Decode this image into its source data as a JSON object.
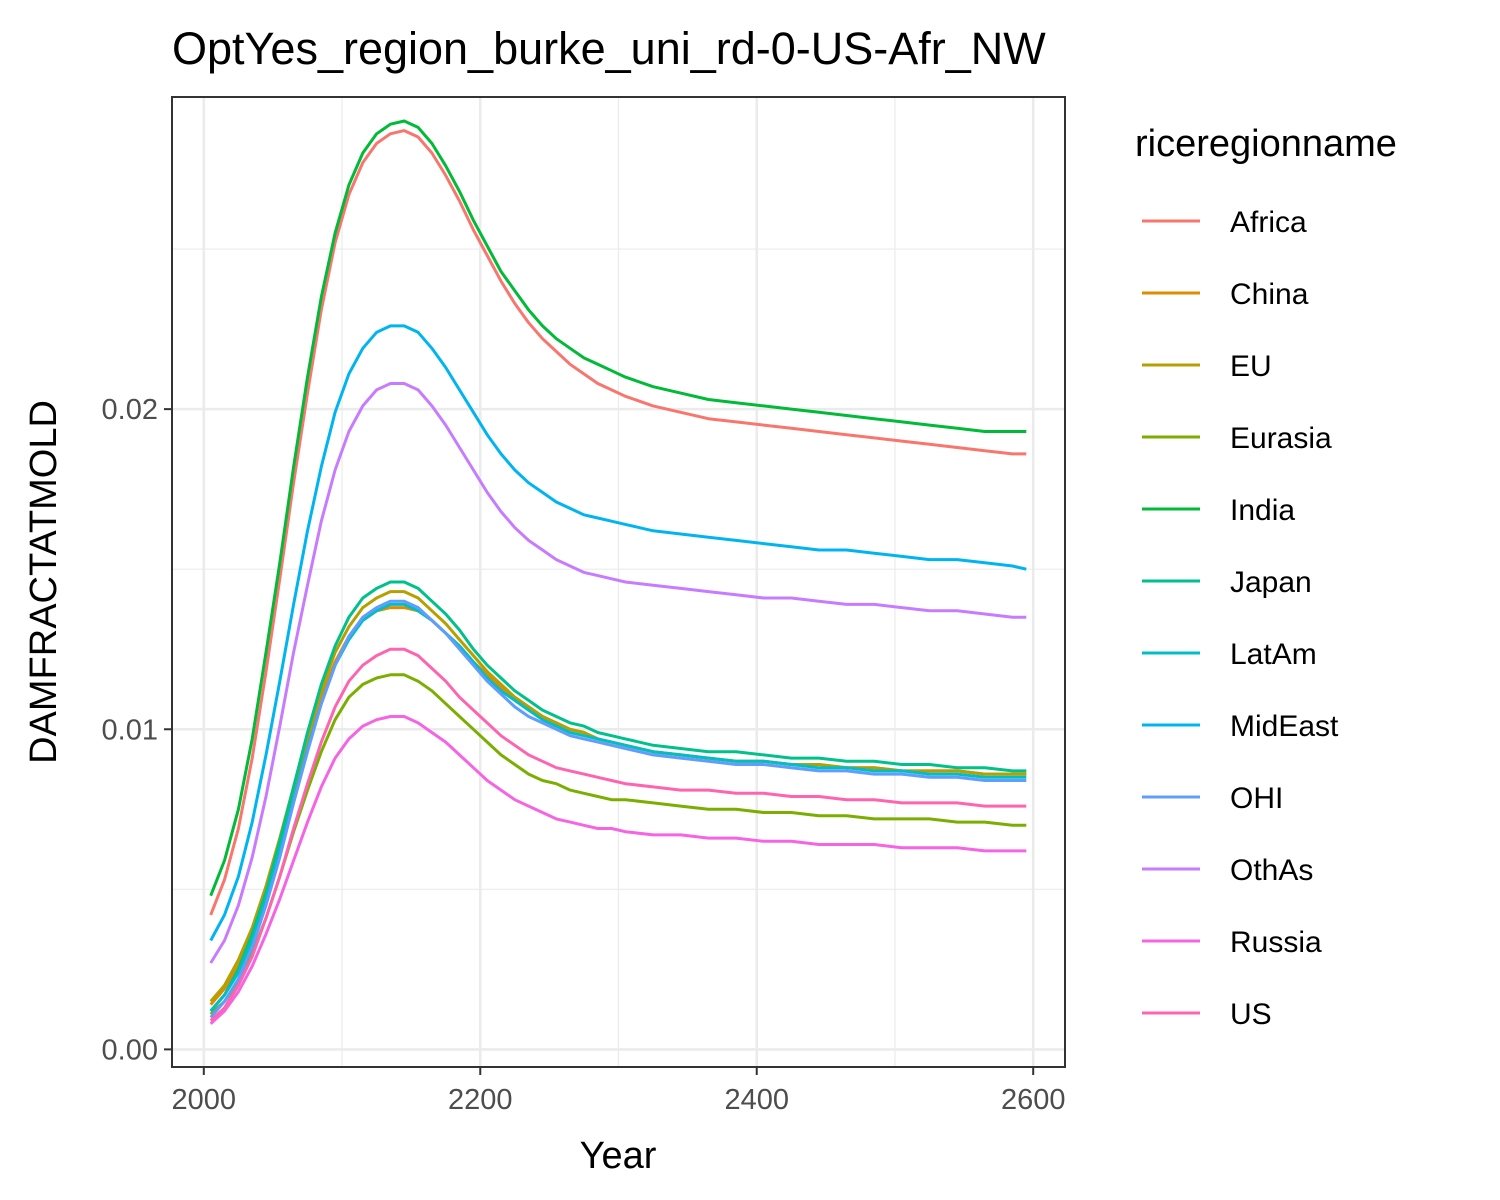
{
  "chart_data": {
    "type": "line",
    "title": "OptYes_region_burke_uni_rd-0-US-Afr_NW",
    "xlabel": "Year",
    "ylabel": "DAMFRACTATMOLD",
    "xlim": [
      1977,
      2623
    ],
    "ylim": [
      -0.00055,
      0.02975
    ],
    "x_ticks": [
      2000,
      2200,
      2400,
      2600
    ],
    "x_tick_labels": [
      "2000",
      "2200",
      "2400",
      "2600"
    ],
    "y_ticks": [
      0.0,
      0.01,
      0.02
    ],
    "y_tick_labels": [
      "0.00",
      "0.01",
      "0.02"
    ],
    "x_minor": [
      2100,
      2300,
      2500
    ],
    "y_minor": [
      0.005,
      0.015,
      0.025
    ],
    "grid": true,
    "legend": {
      "title": "riceregionname",
      "position": "right"
    },
    "x": [
      2005,
      2015,
      2025,
      2035,
      2045,
      2055,
      2065,
      2075,
      2085,
      2095,
      2105,
      2115,
      2125,
      2135,
      2145,
      2155,
      2165,
      2175,
      2185,
      2195,
      2205,
      2215,
      2225,
      2235,
      2245,
      2255,
      2265,
      2275,
      2285,
      2295,
      2305,
      2325,
      2345,
      2365,
      2385,
      2405,
      2425,
      2445,
      2465,
      2485,
      2505,
      2525,
      2545,
      2565,
      2585,
      2595
    ],
    "series": [
      {
        "name": "Africa",
        "color": "#F8766D",
        "values": [
          0.0042,
          0.0053,
          0.0069,
          0.0091,
          0.0118,
          0.0147,
          0.0177,
          0.0205,
          0.0231,
          0.0252,
          0.0267,
          0.0277,
          0.0283,
          0.0286,
          0.0287,
          0.0285,
          0.028,
          0.0273,
          0.0265,
          0.0256,
          0.0248,
          0.024,
          0.0233,
          0.0227,
          0.0222,
          0.0218,
          0.0214,
          0.0211,
          0.0208,
          0.0206,
          0.0204,
          0.0201,
          0.0199,
          0.0197,
          0.0196,
          0.0195,
          0.0194,
          0.0193,
          0.0192,
          0.0191,
          0.019,
          0.0189,
          0.0188,
          0.0187,
          0.0186,
          0.0186
        ]
      },
      {
        "name": "China",
        "color": "#DE8C00",
        "values": [
          0.0014,
          0.0019,
          0.0026,
          0.0036,
          0.0049,
          0.0064,
          0.008,
          0.0096,
          0.011,
          0.0121,
          0.0129,
          0.0134,
          0.0137,
          0.0138,
          0.0138,
          0.0137,
          0.0134,
          0.013,
          0.0126,
          0.0121,
          0.0117,
          0.0113,
          0.011,
          0.0107,
          0.0104,
          0.0102,
          0.01,
          0.0099,
          0.0097,
          0.0096,
          0.0095,
          0.0093,
          0.0092,
          0.0091,
          0.009,
          0.009,
          0.0089,
          0.0089,
          0.0088,
          0.0088,
          0.0087,
          0.0087,
          0.0087,
          0.0086,
          0.0086,
          0.0086
        ]
      },
      {
        "name": "EU",
        "color": "#B79F00",
        "values": [
          0.0015,
          0.002,
          0.0028,
          0.0038,
          0.0051,
          0.0066,
          0.0082,
          0.0098,
          0.0112,
          0.0124,
          0.0132,
          0.0138,
          0.0141,
          0.0143,
          0.0143,
          0.0141,
          0.0137,
          0.0133,
          0.0128,
          0.0123,
          0.0118,
          0.0114,
          0.011,
          0.0107,
          0.0104,
          0.0102,
          0.01,
          0.0099,
          0.0097,
          0.0096,
          0.0095,
          0.0093,
          0.0092,
          0.0091,
          0.009,
          0.009,
          0.0089,
          0.0089,
          0.0088,
          0.0088,
          0.0087,
          0.0087,
          0.0087,
          0.0086,
          0.0086,
          0.0086
        ]
      },
      {
        "name": "Eurasia",
        "color": "#7CAE00",
        "values": [
          0.0011,
          0.0015,
          0.0021,
          0.003,
          0.0041,
          0.0054,
          0.0068,
          0.0081,
          0.0093,
          0.0103,
          0.011,
          0.0114,
          0.0116,
          0.0117,
          0.0117,
          0.0115,
          0.0112,
          0.0108,
          0.0104,
          0.01,
          0.0096,
          0.0092,
          0.0089,
          0.0086,
          0.0084,
          0.0083,
          0.0081,
          0.008,
          0.0079,
          0.0078,
          0.0078,
          0.0077,
          0.0076,
          0.0075,
          0.0075,
          0.0074,
          0.0074,
          0.0073,
          0.0073,
          0.0072,
          0.0072,
          0.0072,
          0.0071,
          0.0071,
          0.007,
          0.007
        ]
      },
      {
        "name": "India",
        "color": "#00BA38",
        "values": [
          0.0048,
          0.0059,
          0.0075,
          0.0097,
          0.0124,
          0.0152,
          0.0182,
          0.021,
          0.0235,
          0.0255,
          0.027,
          0.028,
          0.0286,
          0.0289,
          0.029,
          0.0288,
          0.0283,
          0.0276,
          0.0268,
          0.0259,
          0.0251,
          0.0243,
          0.0237,
          0.0231,
          0.0226,
          0.0222,
          0.0219,
          0.0216,
          0.0214,
          0.0212,
          0.021,
          0.0207,
          0.0205,
          0.0203,
          0.0202,
          0.0201,
          0.02,
          0.0199,
          0.0198,
          0.0197,
          0.0196,
          0.0195,
          0.0194,
          0.0193,
          0.0193,
          0.0193
        ]
      },
      {
        "name": "Japan",
        "color": "#00C08B",
        "values": [
          0.0012,
          0.0017,
          0.0025,
          0.0036,
          0.0049,
          0.0065,
          0.0082,
          0.0099,
          0.0114,
          0.0126,
          0.0135,
          0.0141,
          0.0144,
          0.0146,
          0.0146,
          0.0144,
          0.014,
          0.0136,
          0.0131,
          0.0125,
          0.012,
          0.0116,
          0.0112,
          0.0109,
          0.0106,
          0.0104,
          0.0102,
          0.0101,
          0.0099,
          0.0098,
          0.0097,
          0.0095,
          0.0094,
          0.0093,
          0.0093,
          0.0092,
          0.0091,
          0.0091,
          0.009,
          0.009,
          0.0089,
          0.0089,
          0.0088,
          0.0088,
          0.0087,
          0.0087
        ]
      },
      {
        "name": "LatAm",
        "color": "#00BFC4",
        "values": [
          0.0012,
          0.0017,
          0.0024,
          0.0034,
          0.0047,
          0.0062,
          0.0078,
          0.0094,
          0.0108,
          0.012,
          0.0128,
          0.0134,
          0.0137,
          0.0139,
          0.0139,
          0.0137,
          0.0134,
          0.013,
          0.0126,
          0.0121,
          0.0116,
          0.0112,
          0.0109,
          0.0106,
          0.0103,
          0.0101,
          0.0099,
          0.0098,
          0.0097,
          0.0096,
          0.0095,
          0.0093,
          0.0092,
          0.0091,
          0.009,
          0.009,
          0.0089,
          0.0088,
          0.0088,
          0.0087,
          0.0087,
          0.0086,
          0.0086,
          0.0085,
          0.0085,
          0.0085
        ]
      },
      {
        "name": "MidEast",
        "color": "#00B4F0",
        "values": [
          0.0034,
          0.0042,
          0.0054,
          0.0071,
          0.0092,
          0.0115,
          0.0139,
          0.0162,
          0.0182,
          0.0199,
          0.0211,
          0.0219,
          0.0224,
          0.0226,
          0.0226,
          0.0224,
          0.0219,
          0.0213,
          0.0206,
          0.0199,
          0.0192,
          0.0186,
          0.0181,
          0.0177,
          0.0174,
          0.0171,
          0.0169,
          0.0167,
          0.0166,
          0.0165,
          0.0164,
          0.0162,
          0.0161,
          0.016,
          0.0159,
          0.0158,
          0.0157,
          0.0156,
          0.0156,
          0.0155,
          0.0154,
          0.0153,
          0.0153,
          0.0152,
          0.0151,
          0.015
        ]
      },
      {
        "name": "OHI",
        "color": "#619CFF",
        "values": [
          0.001,
          0.0015,
          0.0022,
          0.0032,
          0.0045,
          0.006,
          0.0077,
          0.0093,
          0.0108,
          0.012,
          0.0129,
          0.0135,
          0.0138,
          0.014,
          0.014,
          0.0138,
          0.0134,
          0.013,
          0.0125,
          0.012,
          0.0115,
          0.0111,
          0.0107,
          0.0104,
          0.0102,
          0.01,
          0.0098,
          0.0097,
          0.0096,
          0.0095,
          0.0094,
          0.0092,
          0.0091,
          0.009,
          0.0089,
          0.0089,
          0.0088,
          0.0087,
          0.0087,
          0.0086,
          0.0086,
          0.0085,
          0.0085,
          0.0084,
          0.0084,
          0.0084
        ]
      },
      {
        "name": "OthAs",
        "color": "#C77CFF",
        "values": [
          0.0027,
          0.0034,
          0.0045,
          0.006,
          0.0079,
          0.0101,
          0.0124,
          0.0145,
          0.0165,
          0.0181,
          0.0193,
          0.0201,
          0.0206,
          0.0208,
          0.0208,
          0.0206,
          0.0201,
          0.0195,
          0.0188,
          0.0181,
          0.0174,
          0.0168,
          0.0163,
          0.0159,
          0.0156,
          0.0153,
          0.0151,
          0.0149,
          0.0148,
          0.0147,
          0.0146,
          0.0145,
          0.0144,
          0.0143,
          0.0142,
          0.0141,
          0.0141,
          0.014,
          0.0139,
          0.0139,
          0.0138,
          0.0137,
          0.0137,
          0.0136,
          0.0135,
          0.0135
        ]
      },
      {
        "name": "Russia",
        "color": "#F564E3",
        "values": [
          0.0008,
          0.0012,
          0.0018,
          0.0026,
          0.0036,
          0.0047,
          0.0059,
          0.0071,
          0.0082,
          0.0091,
          0.0097,
          0.0101,
          0.0103,
          0.0104,
          0.0104,
          0.0102,
          0.0099,
          0.0096,
          0.0092,
          0.0088,
          0.0084,
          0.0081,
          0.0078,
          0.0076,
          0.0074,
          0.0072,
          0.0071,
          0.007,
          0.0069,
          0.0069,
          0.0068,
          0.0067,
          0.0067,
          0.0066,
          0.0066,
          0.0065,
          0.0065,
          0.0064,
          0.0064,
          0.0064,
          0.0063,
          0.0063,
          0.0063,
          0.0062,
          0.0062,
          0.0062
        ]
      },
      {
        "name": "US",
        "color": "#FF64B0",
        "values": [
          0.0009,
          0.0013,
          0.002,
          0.0029,
          0.0041,
          0.0054,
          0.0069,
          0.0083,
          0.0096,
          0.0107,
          0.0115,
          0.012,
          0.0123,
          0.0125,
          0.0125,
          0.0123,
          0.0119,
          0.0115,
          0.011,
          0.0106,
          0.0102,
          0.0098,
          0.0095,
          0.0092,
          0.009,
          0.0088,
          0.0087,
          0.0086,
          0.0085,
          0.0084,
          0.0083,
          0.0082,
          0.0081,
          0.0081,
          0.008,
          0.008,
          0.0079,
          0.0079,
          0.0078,
          0.0078,
          0.0077,
          0.0077,
          0.0077,
          0.0076,
          0.0076,
          0.0076
        ]
      }
    ]
  }
}
